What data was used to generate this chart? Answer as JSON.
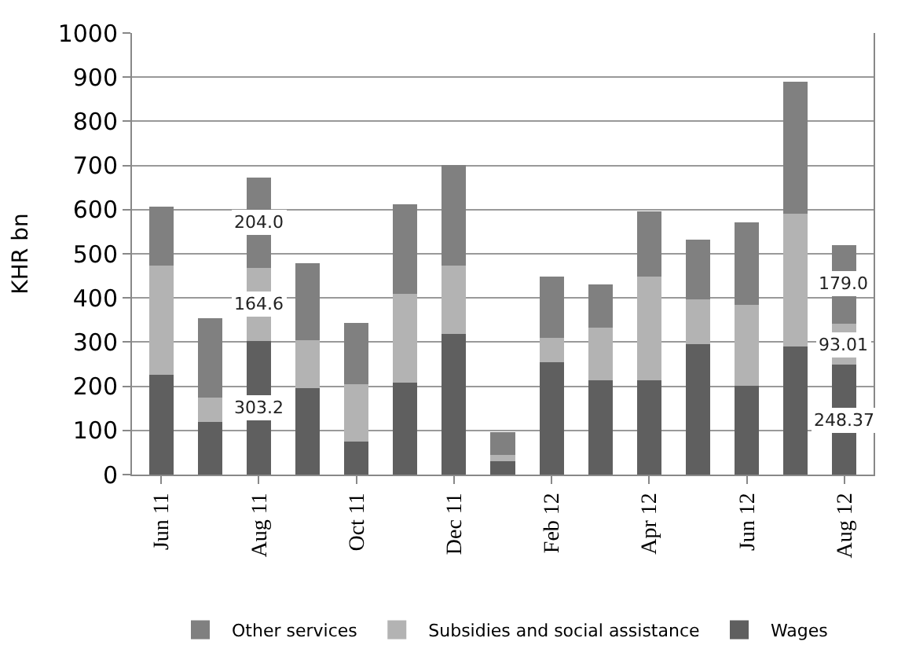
{
  "chart_data": {
    "type": "bar",
    "stacked": true,
    "ylabel": "KHR bn",
    "categories": [
      "Jun 11",
      null,
      "Aug 11",
      null,
      "Oct 11",
      null,
      "Dec 11",
      null,
      "Feb 12",
      null,
      "Apr 12",
      null,
      "Jun 12",
      null,
      "Aug 12"
    ],
    "series": [
      {
        "name": "Wages",
        "color": "#5f5f5f",
        "values": [
          226,
          119,
          303.2,
          196,
          74,
          208,
          319,
          31,
          254,
          214,
          214,
          296,
          201,
          290,
          248.37
        ],
        "value_labels": [
          null,
          null,
          "303.2",
          null,
          null,
          null,
          null,
          null,
          null,
          null,
          null,
          null,
          null,
          null,
          "248.37"
        ]
      },
      {
        "name": "Subsidies and social assistance",
        "color": "#b3b3b3",
        "values": [
          248,
          55,
          164.6,
          108,
          130,
          202,
          155,
          14,
          55,
          118,
          235,
          100,
          184,
          301,
          93.01
        ],
        "value_labels": [
          null,
          null,
          "164.6",
          null,
          null,
          null,
          null,
          null,
          null,
          null,
          null,
          null,
          null,
          null,
          "93.01"
        ]
      },
      {
        "name": "Other services",
        "color": "#808080",
        "values": [
          132,
          181,
          204.0,
          175,
          139,
          203,
          227,
          51,
          140,
          99,
          147,
          136,
          187,
          298,
          179.0
        ],
        "value_labels": [
          null,
          null,
          "204.0",
          null,
          null,
          null,
          null,
          null,
          null,
          null,
          null,
          null,
          null,
          null,
          "179.0"
        ]
      }
    ],
    "ylim": [
      0,
      1000
    ],
    "yticks": [
      0,
      100,
      200,
      300,
      400,
      500,
      600,
      700,
      800,
      900,
      1000
    ],
    "grid": "y",
    "legend": "bottom"
  }
}
